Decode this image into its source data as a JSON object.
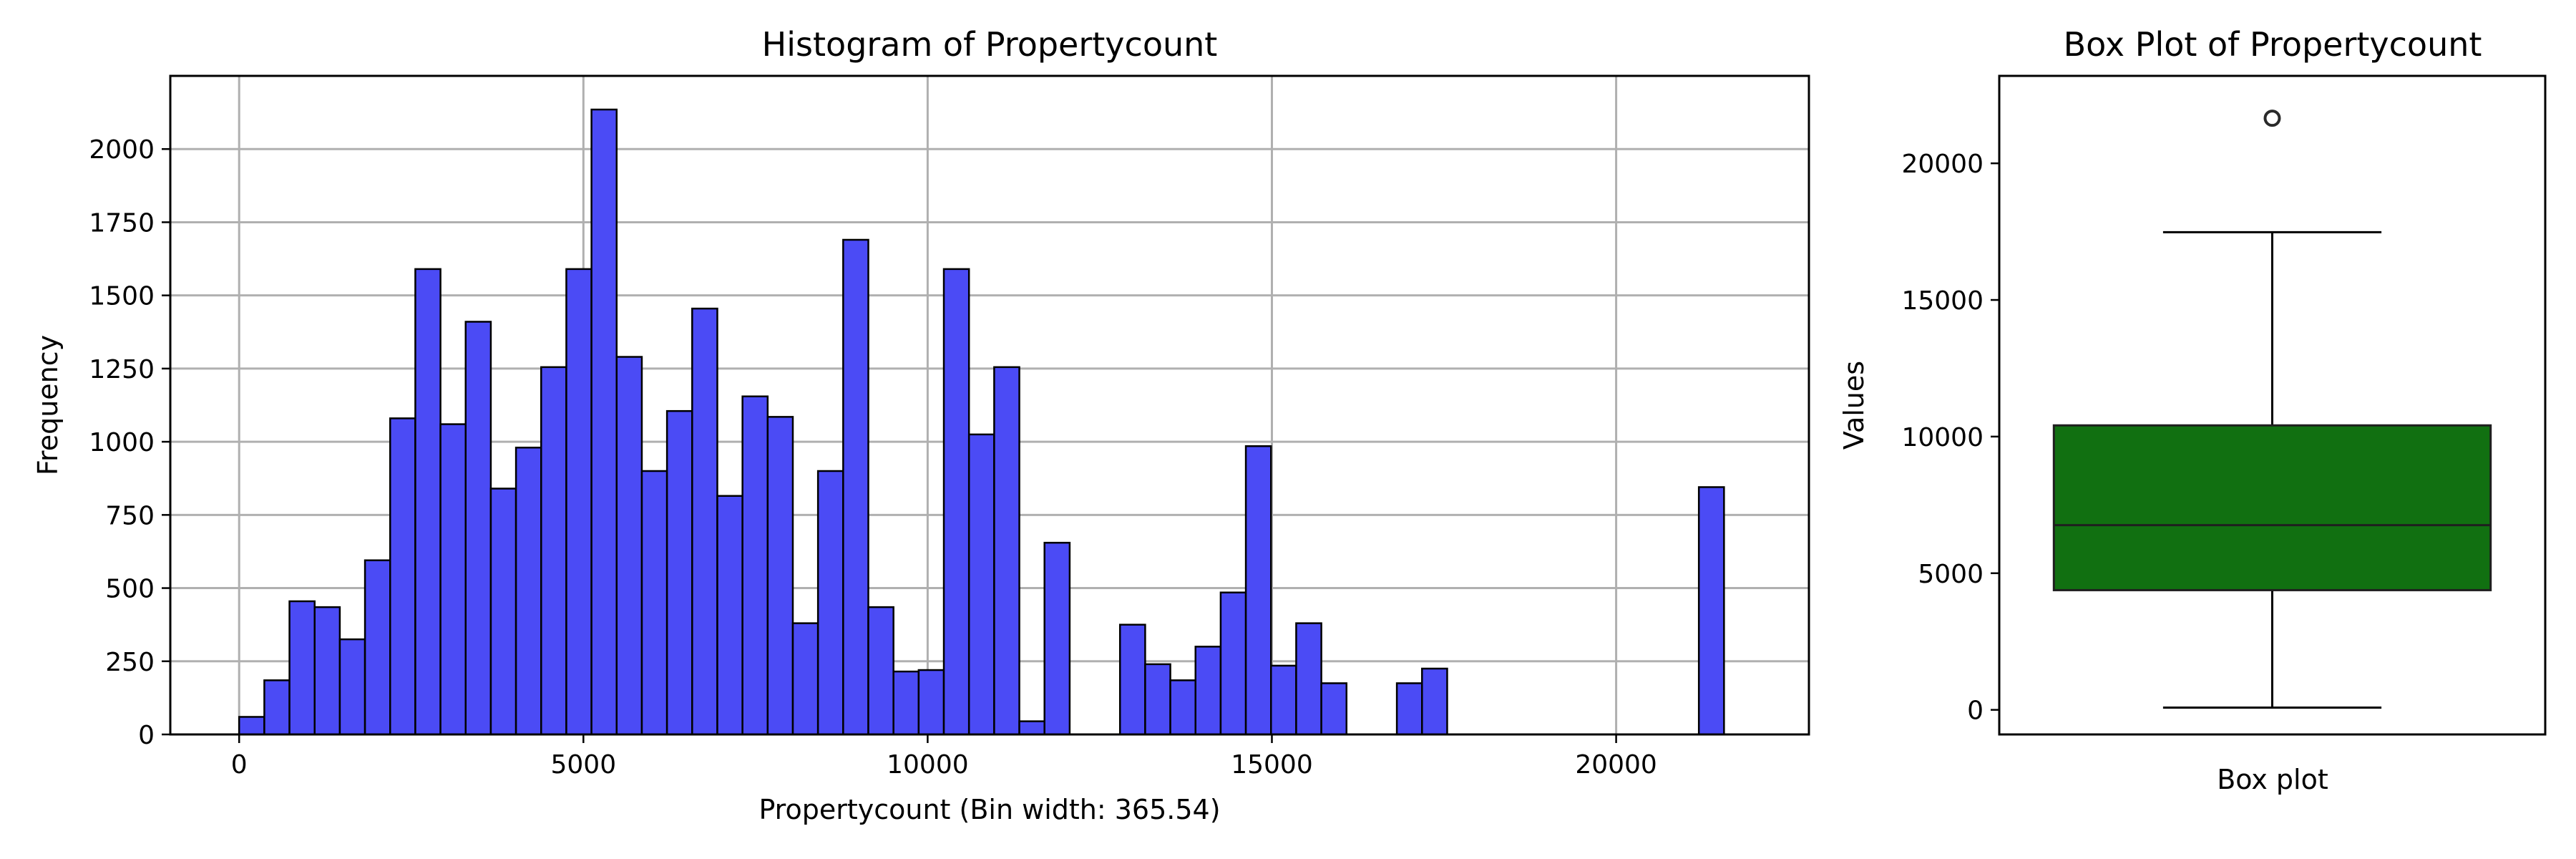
{
  "chart_data": [
    {
      "type": "bar",
      "subtype": "histogram",
      "title": "Histogram of Propertycount",
      "xlabel": "Propertycount (Bin width: 365.54)",
      "ylabel": "Frequency",
      "bin_width": 365.54,
      "bin_start": 0,
      "xlim": [
        -1000,
        22800
      ],
      "ylim": [
        0,
        2250
      ],
      "xticks": [
        0,
        5000,
        10000,
        15000,
        20000
      ],
      "yticks": [
        0,
        250,
        500,
        750,
        1000,
        1250,
        1500,
        1750,
        2000
      ],
      "grid": true,
      "bar_color": "#4b4bf5",
      "edge_color": "#000000",
      "values": [
        60,
        185,
        455,
        435,
        325,
        595,
        1080,
        1590,
        1060,
        1410,
        840,
        980,
        1255,
        1590,
        2135,
        1290,
        900,
        1105,
        1455,
        815,
        1155,
        1085,
        380,
        900,
        1690,
        435,
        215,
        220,
        1590,
        1025,
        1255,
        45,
        655,
        0,
        0,
        375,
        240,
        185,
        300,
        485,
        985,
        235,
        380,
        175,
        0,
        0,
        175,
        225,
        0,
        0,
        0,
        0,
        0,
        0,
        0,
        0,
        0,
        0,
        845
      ]
    },
    {
      "type": "box",
      "title": "Box Plot of Propertycount",
      "xlabel": "Box plot",
      "ylabel": "Values",
      "ylim": [
        -900,
        23200
      ],
      "yticks": [
        0,
        5000,
        10000,
        15000,
        20000
      ],
      "grid": false,
      "box_color": "#117011",
      "whisker_low": 83,
      "q1": 4380,
      "median": 6760,
      "q3": 10410,
      "whisker_high": 17480,
      "outliers": [
        21650
      ]
    }
  ]
}
